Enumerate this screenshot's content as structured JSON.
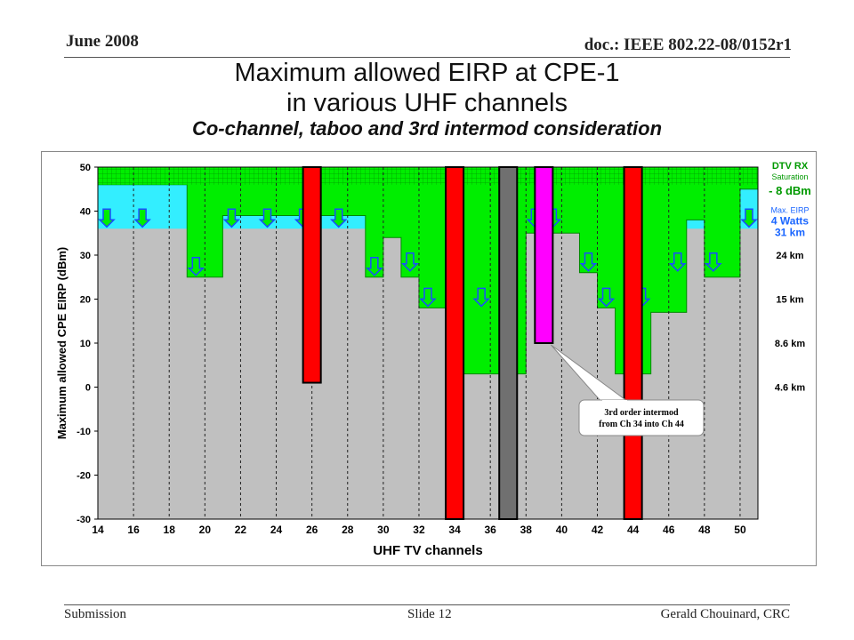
{
  "header": {
    "date": "June 2008",
    "doc": "doc.: IEEE 802.22-08/0152r1"
  },
  "slide": {
    "title_line1": "Maximum allowed EIRP at CPE-1",
    "title_line2": "in various UHF channels",
    "subtitle": "Co-channel, taboo and 3rd intermod consideration"
  },
  "footer": {
    "left": "Submission",
    "center": "Slide 12",
    "right": "Gerald Chouinard, CRC"
  },
  "colors": {
    "green": "#00ee00",
    "cyan": "#33eeff",
    "gray": "#c0c0c0",
    "red": "#ff0000",
    "magenta": "#ff00ff",
    "dark_gray": "#707070",
    "blue": "#1a66ff"
  },
  "chart_data": {
    "type": "bar",
    "xlabel": "UHF TV channels",
    "ylabel": "Maximum allowed CPE EIRP (dBm)",
    "xlim": [
      14,
      51
    ],
    "ylim": [
      -30,
      50
    ],
    "x_ticks": [
      14,
      16,
      18,
      20,
      22,
      24,
      26,
      28,
      30,
      32,
      34,
      36,
      38,
      40,
      42,
      44,
      46,
      48,
      50
    ],
    "y_ticks": [
      50,
      40,
      30,
      20,
      10,
      0,
      -10,
      -20,
      -30
    ],
    "grid_vertical_dashed": true,
    "reference_levels": [
      {
        "label": "DTV RX",
        "label2": "Saturation",
        "value_label": "- 8 dBm",
        "y": 50,
        "color": "green"
      },
      {
        "label": "Max. EIRP",
        "value_label": "4 Watts",
        "value_label2": "31 km",
        "y": 36,
        "color": "blue"
      },
      {
        "label": "24 km",
        "y": 30
      },
      {
        "label": "15 km",
        "y": 20
      },
      {
        "label": "8.6 km",
        "y": 10
      },
      {
        "label": "4.6 km",
        "y": 0
      }
    ],
    "series": [
      {
        "type": "cap_region",
        "x": [
          14,
          15,
          16,
          17,
          18,
          19,
          20,
          21,
          22,
          23,
          24,
          25,
          26,
          27,
          28,
          29,
          30,
          31,
          32,
          33,
          34,
          35,
          36,
          37,
          38,
          39,
          40,
          41,
          42,
          43,
          44,
          45,
          46,
          47,
          48,
          49,
          50
        ],
        "values": [
          46,
          46,
          46,
          46,
          46,
          25,
          25,
          39,
          39,
          39,
          39,
          39,
          39,
          39,
          39,
          25,
          34,
          25,
          18,
          18,
          3,
          3,
          3,
          3,
          35,
          35,
          35,
          26,
          18,
          3,
          3,
          17,
          17,
          38,
          25,
          25,
          45
        ]
      },
      {
        "name": "Ch 26",
        "kind": "red",
        "channel": 26,
        "from": 1,
        "to": 50
      },
      {
        "name": "Ch 34",
        "kind": "red",
        "channel": 34,
        "from": -30,
        "to": 50
      },
      {
        "name": "Ch 37",
        "kind": "gray",
        "channel": 37,
        "from": -30,
        "to": 50
      },
      {
        "name": "Ch 39",
        "kind": "magenta",
        "channel": 39,
        "from": 10,
        "to": 50
      },
      {
        "name": "Ch 44",
        "kind": "red",
        "channel": 44,
        "from": -30,
        "to": 50
      }
    ],
    "annotation": {
      "line1": "3rd order intermod",
      "line2": "from Ch 34 into Ch 44"
    }
  }
}
